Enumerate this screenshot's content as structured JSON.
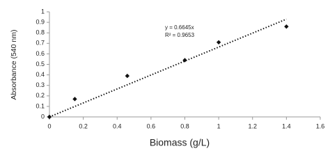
{
  "chart_data": {
    "type": "scatter",
    "x_label": "Biomass (g/L)",
    "y_label": "Absorbance (540 nm)",
    "x": [
      0,
      0.15,
      0.46,
      0.8,
      1.0,
      1.4
    ],
    "values": [
      0,
      0.17,
      0.39,
      0.54,
      0.71,
      0.86
    ],
    "color": "#111111",
    "xlim": [
      0,
      1.6
    ],
    "xticks": [
      0,
      0.2,
      0.4,
      0.6,
      0.8,
      1,
      1.2,
      1.4,
      1.6
    ],
    "ylim": [
      0,
      1
    ],
    "yticks": [
      0,
      0.1,
      0.2,
      0.3,
      0.4,
      0.5,
      0.6,
      0.7,
      0.8,
      0.9,
      1
    ],
    "trendline": {
      "slope": 0.6645,
      "style": "dotted"
    },
    "annotations": [
      "y = 0.6645x",
      "R² = 0.9653"
    ],
    "grid": false
  }
}
